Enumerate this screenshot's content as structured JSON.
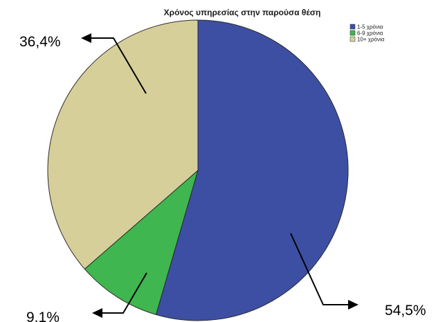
{
  "chart_data": {
    "type": "pie",
    "title": "Χρόνος υπηρεσίας στην παρούσα θέση",
    "categories": [
      "1-5 χρόνια",
      "6-9 χρόνια",
      "10+ χρόνια"
    ],
    "values": [
      54.5,
      9.1,
      36.4
    ],
    "colors": [
      "#3c4fa3",
      "#3fb64f",
      "#d6cf9a"
    ],
    "data_labels": [
      "54,5%",
      "9.1%",
      "36,4%"
    ],
    "legend_position": "top-right",
    "start_angle": "top, clockwise"
  }
}
